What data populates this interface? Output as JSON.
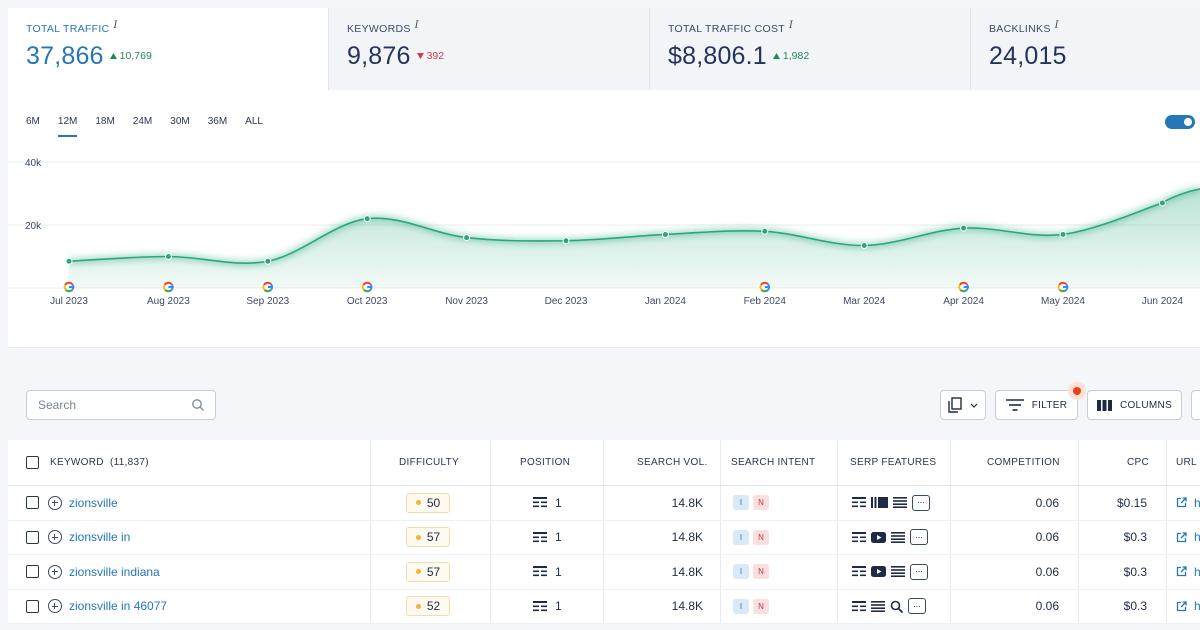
{
  "metrics": [
    {
      "label": "TOTAL TRAFFIC",
      "info": "i",
      "value": "37,866",
      "delta": "10,769",
      "direction": "up",
      "active": true
    },
    {
      "label": "KEYWORDS",
      "info": "i",
      "value": "9,876",
      "delta": "392",
      "direction": "down",
      "active": false
    },
    {
      "label": "TOTAL TRAFFIC COST",
      "info": "i",
      "value": "$8,806.1",
      "delta": "1,982",
      "direction": "up",
      "active": false
    },
    {
      "label": "BACKLINKS",
      "info": "i",
      "value": "24,015",
      "delta": "",
      "direction": "",
      "active": false
    }
  ],
  "ranges": [
    "6M",
    "12M",
    "18M",
    "24M",
    "30M",
    "36M",
    "ALL"
  ],
  "active_range": "12M",
  "chart_data": {
    "type": "area",
    "x": [
      "Jul 2023",
      "Aug 2023",
      "Sep 2023",
      "Oct 2023",
      "Nov 2023",
      "Dec 2023",
      "Jan 2024",
      "Feb 2024",
      "Mar 2024",
      "Apr 2024",
      "May 2024",
      "Jun 2024"
    ],
    "values": [
      8500,
      10000,
      8500,
      22000,
      16000,
      15000,
      17000,
      18000,
      13500,
      19000,
      17000,
      27000
    ],
    "y_ticks": [
      "40k",
      "20k"
    ],
    "ylim": [
      0,
      40000
    ],
    "google_update_markers": [
      "Jul 2023",
      "Aug 2023",
      "Sep 2023",
      "Oct 2023",
      "Feb 2024",
      "Apr 2024",
      "May 2024"
    ],
    "line_color": "#2aa87a",
    "grid": true
  },
  "toolbar": {
    "search_placeholder": "Search",
    "filter_label": "FILTER",
    "columns_label": "COLUMNS"
  },
  "table": {
    "headers": {
      "keyword": "KEYWORD",
      "keyword_count": "(11,837)",
      "difficulty": "DIFFICULTY",
      "position": "POSITION",
      "search_vol": "SEARCH VOL.",
      "search_intent": "SEARCH INTENT",
      "serp_features": "SERP FEATURES",
      "competition": "COMPETITION",
      "cpc": "CPC",
      "url": "URL"
    },
    "rows": [
      {
        "keyword": "zionsville",
        "difficulty": "50",
        "position": "1",
        "search_vol": "14.8K",
        "intent": [
          "I",
          "N"
        ],
        "serp": [
          "table-icon",
          "carousel-icon",
          "list-icon"
        ],
        "competition": "0.06",
        "cpc": "$0.15",
        "url": "h"
      },
      {
        "keyword": "zionsville in",
        "difficulty": "57",
        "position": "1",
        "search_vol": "14.8K",
        "intent": [
          "I",
          "N"
        ],
        "serp": [
          "table-icon",
          "video-icon",
          "list-icon"
        ],
        "competition": "0.06",
        "cpc": "$0.3",
        "url": "h"
      },
      {
        "keyword": "zionsville indiana",
        "difficulty": "57",
        "position": "1",
        "search_vol": "14.8K",
        "intent": [
          "I",
          "N"
        ],
        "serp": [
          "table-icon",
          "video-icon",
          "list-icon"
        ],
        "competition": "0.06",
        "cpc": "$0.3",
        "url": "h"
      },
      {
        "keyword": "zionsville in 46077",
        "difficulty": "52",
        "position": "1",
        "search_vol": "14.8K",
        "intent": [
          "I",
          "N"
        ],
        "serp": [
          "table-icon",
          "list-icon",
          "magnifier-icon"
        ],
        "competition": "0.06",
        "cpc": "$0.3",
        "url": "h"
      }
    ]
  },
  "colors": {
    "accent": "#2577b8",
    "up": "#1f8a5a",
    "down": "#d23a4a",
    "notification": "#e8431c"
  }
}
